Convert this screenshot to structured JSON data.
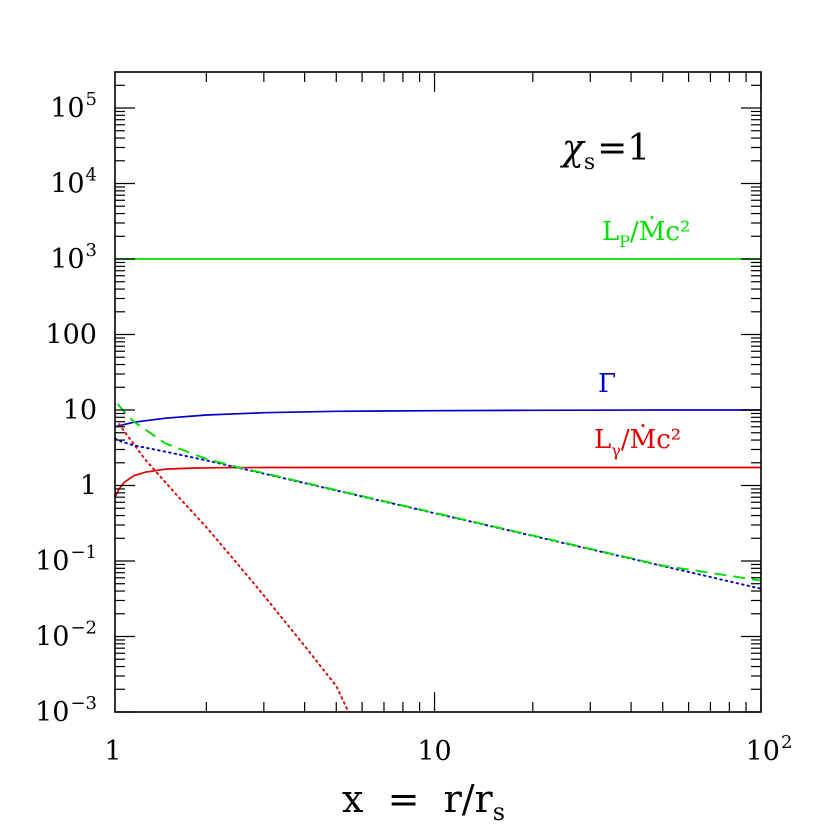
{
  "chart_data": {
    "type": "line",
    "title": "",
    "xlabel": {
      "main": "x  =  r/r",
      "sub": "s"
    },
    "ylabel": "",
    "xscale": "log",
    "yscale": "log",
    "xlim": [
      1.05,
      100
    ],
    "ylim": [
      0.001,
      300000
    ],
    "xticks": [
      {
        "value": 1,
        "base": "1",
        "exp": ""
      },
      {
        "value": 10,
        "base": "10",
        "exp": ""
      },
      {
        "value": 100,
        "base": "10",
        "exp": "2"
      }
    ],
    "yticks": [
      {
        "value": 0.001,
        "base": "10",
        "exp": "−3"
      },
      {
        "value": 0.01,
        "base": "10",
        "exp": "−2"
      },
      {
        "value": 0.1,
        "base": "10",
        "exp": "−1"
      },
      {
        "value": 1,
        "base": "1",
        "exp": ""
      },
      {
        "value": 10,
        "base": "10",
        "exp": ""
      },
      {
        "value": 100,
        "base": "100",
        "exp": ""
      },
      {
        "value": 1000,
        "base": "10",
        "exp": "3"
      },
      {
        "value": 10000,
        "base": "10",
        "exp": "4"
      },
      {
        "value": 100000,
        "base": "10",
        "exp": "5"
      }
    ],
    "grid": false,
    "annotations": {
      "chi": {
        "symbol": "χ",
        "sub": "s",
        "rest": "=1"
      },
      "lp": {
        "main": "L",
        "sub": "P",
        "rest": "/Ṁc²",
        "color": "#00e000"
      },
      "gamma": {
        "text": "Γ",
        "color": "#0000c8"
      },
      "lgamma": {
        "main": "L",
        "sub": "γ",
        "rest": "/Ṁc²",
        "color": "#e00000"
      }
    },
    "series": [
      {
        "style": "solid",
        "color": "#00e000",
        "x": [
          1.05,
          100
        ],
        "y": [
          1000,
          1000
        ]
      },
      {
        "style": "solid",
        "color": "#0000c8",
        "x": [
          1.05,
          1.2,
          1.5,
          2,
          3,
          5,
          10,
          20,
          50,
          100
        ],
        "y": [
          6.0,
          6.9,
          7.8,
          8.6,
          9.2,
          9.6,
          9.8,
          9.9,
          10.0,
          10.0
        ]
      },
      {
        "style": "solid",
        "color": "#e00000",
        "x": [
          1.05,
          1.08,
          1.12,
          1.2,
          1.3,
          1.5,
          1.8,
          2.2,
          3,
          5,
          10,
          100
        ],
        "y": [
          0.7,
          0.9,
          1.1,
          1.35,
          1.5,
          1.65,
          1.7,
          1.72,
          1.73,
          1.73,
          1.73,
          1.73
        ]
      },
      {
        "style": "dotted",
        "color": "#e00000",
        "x": [
          1.08,
          1.15,
          1.3,
          1.6,
          2,
          2.5,
          3,
          4,
          5,
          5.45
        ],
        "y": [
          6.5,
          4.5,
          2.2,
          0.8,
          0.28,
          0.09,
          0.035,
          0.0075,
          0.0022,
          0.001
        ]
      },
      {
        "style": "dotted",
        "color": "#0000c8",
        "x": [
          1.05,
          1.1,
          1.2,
          1.5,
          2,
          2.5,
          3,
          5,
          10,
          20,
          50,
          100
        ],
        "y": [
          4.2,
          3.8,
          3.4,
          2.8,
          2.15,
          1.72,
          1.44,
          0.86,
          0.43,
          0.215,
          0.086,
          0.043
        ]
      },
      {
        "style": "dashed",
        "color": "#00e000",
        "x": [
          1.07,
          1.12,
          1.2,
          1.5,
          2,
          2.5,
          3,
          5,
          10,
          20,
          50,
          100
        ],
        "y": [
          12.0,
          9.5,
          7.0,
          3.6,
          2.25,
          1.75,
          1.46,
          0.87,
          0.435,
          0.218,
          0.087,
          0.055
        ]
      }
    ]
  }
}
